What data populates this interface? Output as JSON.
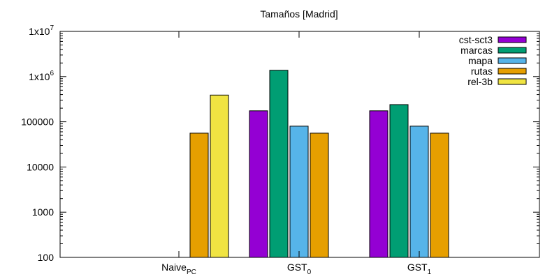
{
  "chart_data": {
    "type": "bar",
    "title": "Tamaños [Madrid]",
    "scale": "log",
    "ylim": [
      100,
      10000000
    ],
    "y_ticks": [
      {
        "value": 10000000,
        "base": "1x10",
        "exp": "7"
      },
      {
        "value": 1000000,
        "base": "1x10",
        "exp": "6"
      },
      {
        "value": 100000,
        "base": "100000",
        "exp": ""
      },
      {
        "value": 10000,
        "base": "10000",
        "exp": ""
      },
      {
        "value": 1000,
        "base": "1000",
        "exp": ""
      },
      {
        "value": 100,
        "base": "100",
        "exp": ""
      }
    ],
    "categories": [
      {
        "base": "Naive",
        "sub": "PC"
      },
      {
        "base": "GST",
        "sub": "0"
      },
      {
        "base": "GST",
        "sub": "1"
      }
    ],
    "series": [
      {
        "name": "cst-sct3",
        "color": "#9400d3",
        "values": [
          null,
          175000,
          175000
        ]
      },
      {
        "name": "marcas",
        "color": "#009e73",
        "values": [
          null,
          1380000,
          240000
        ]
      },
      {
        "name": "mapa",
        "color": "#56b4e9",
        "values": [
          null,
          80000,
          80000
        ]
      },
      {
        "name": "rutas",
        "color": "#e69f00",
        "values": [
          56000,
          56000,
          56000
        ]
      },
      {
        "name": "rel-3b",
        "color": "#f0e442",
        "values": [
          390000,
          null,
          null
        ]
      }
    ],
    "legend_position": "top-right",
    "grid": false
  }
}
